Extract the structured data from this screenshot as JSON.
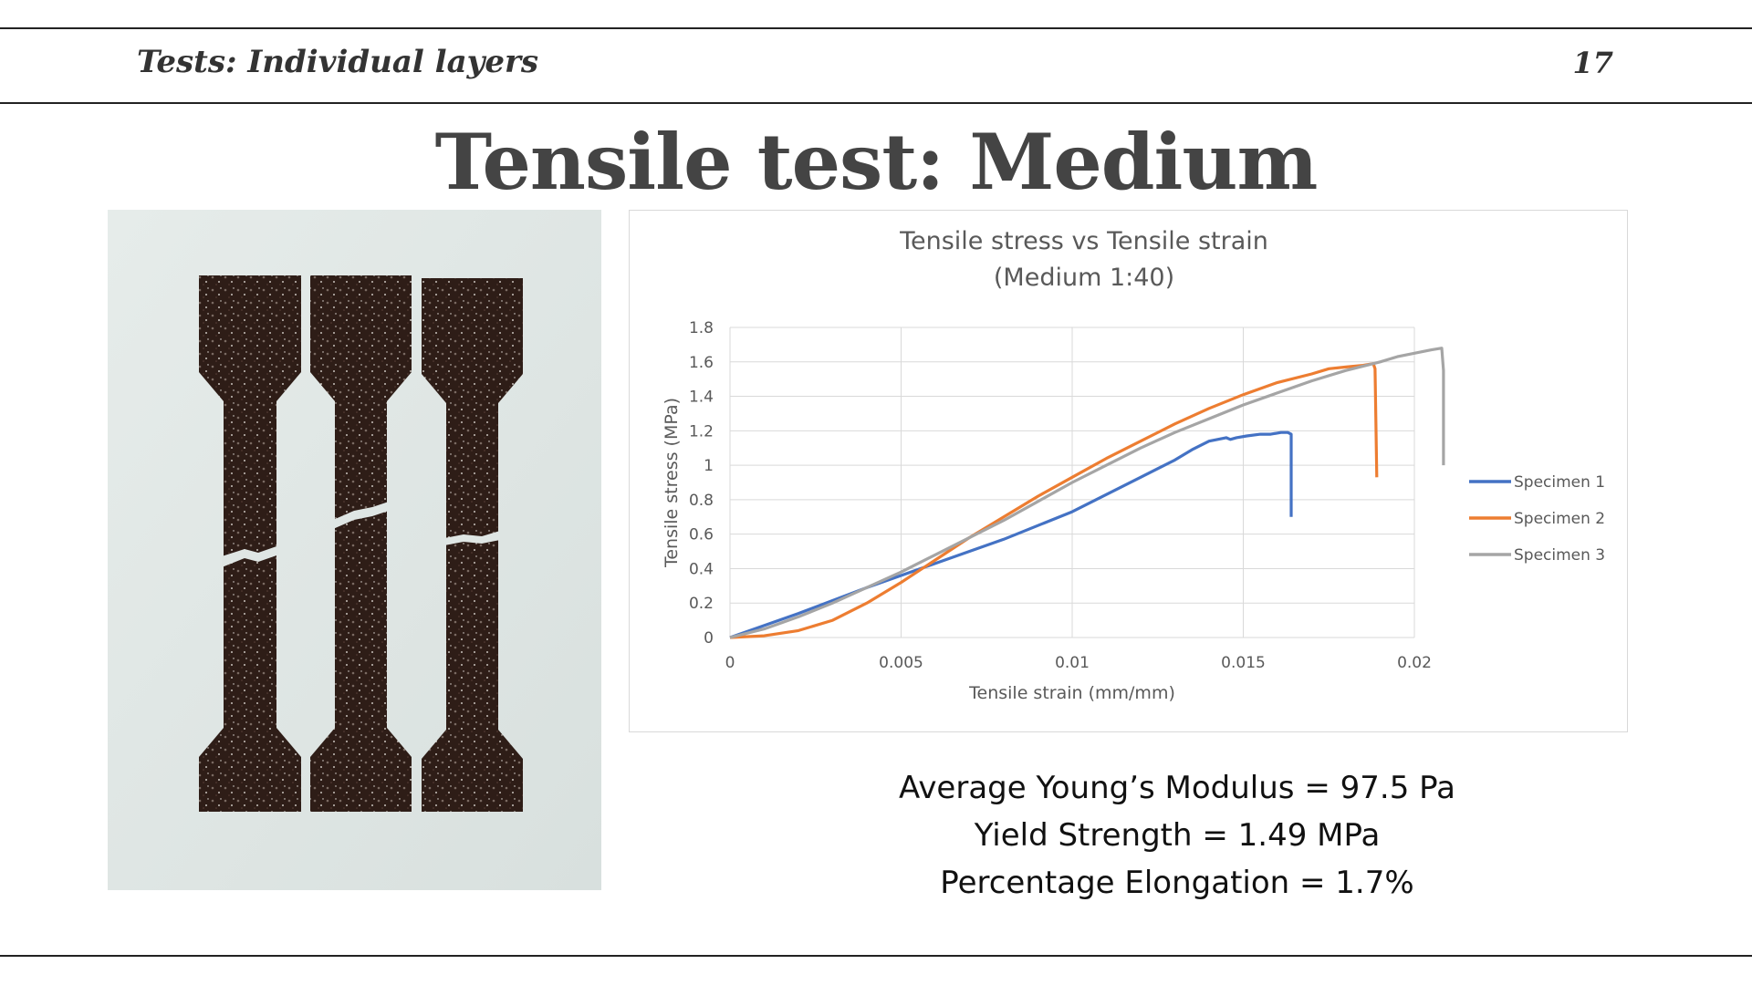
{
  "header": {
    "title": "Tests: Individual layers",
    "page_number": "17"
  },
  "slide": {
    "title": "Tensile test: Medium"
  },
  "photo": {
    "description_icon": "tensile-specimens-photo-icon"
  },
  "stats": {
    "modulus": "Average Young’s Modulus = 97.5 Pa",
    "yield": "Yield Strength = 1.49 MPa",
    "elongation": "Percentage Elongation = 1.7%"
  },
  "chart_data": {
    "type": "line",
    "title": "Tensile stress vs Tensile strain",
    "subtitle": "(Medium 1:40)",
    "xlabel": "Tensile strain (mm/mm)",
    "ylabel": "Tensile stress (MPa)",
    "xlim": [
      0,
      0.02
    ],
    "ylim": [
      0,
      1.8
    ],
    "xticks": [
      0,
      0.005,
      0.01,
      0.015,
      0.02
    ],
    "xtick_labels": [
      "0",
      "0.005",
      "0.01",
      "0.015",
      "0.02"
    ],
    "yticks": [
      0,
      0.2,
      0.4,
      0.6,
      0.8,
      1,
      1.2,
      1.4,
      1.6,
      1.8
    ],
    "ytick_labels": [
      "0",
      "0.2",
      "0.4",
      "0.6",
      "0.8",
      "1",
      "1.2",
      "1.4",
      "1.6",
      "1.8"
    ],
    "grid": true,
    "legend_position": "right",
    "series": [
      {
        "name": "Specimen 1",
        "color": "#4472C4",
        "points": [
          [
            0,
            0
          ],
          [
            0.002,
            0.14
          ],
          [
            0.004,
            0.29
          ],
          [
            0.006,
            0.43
          ],
          [
            0.008,
            0.57
          ],
          [
            0.01,
            0.73
          ],
          [
            0.011,
            0.83
          ],
          [
            0.012,
            0.93
          ],
          [
            0.013,
            1.03
          ],
          [
            0.0135,
            1.09
          ],
          [
            0.014,
            1.14
          ],
          [
            0.0145,
            1.16
          ],
          [
            0.01462,
            1.15
          ],
          [
            0.0148,
            1.16
          ],
          [
            0.0151,
            1.17
          ],
          [
            0.0155,
            1.18
          ],
          [
            0.0158,
            1.18
          ],
          [
            0.0161,
            1.19
          ],
          [
            0.0163,
            1.19
          ],
          [
            0.0164,
            1.18
          ],
          [
            0.0164,
            0.7
          ]
        ]
      },
      {
        "name": "Specimen 2",
        "color": "#ED7D31",
        "points": [
          [
            0,
            0
          ],
          [
            0.001,
            0.01
          ],
          [
            0.002,
            0.04
          ],
          [
            0.003,
            0.1
          ],
          [
            0.004,
            0.2
          ],
          [
            0.005,
            0.32
          ],
          [
            0.006,
            0.45
          ],
          [
            0.007,
            0.58
          ],
          [
            0.008,
            0.7
          ],
          [
            0.009,
            0.82
          ],
          [
            0.01,
            0.93
          ],
          [
            0.011,
            1.04
          ],
          [
            0.012,
            1.14
          ],
          [
            0.013,
            1.24
          ],
          [
            0.014,
            1.33
          ],
          [
            0.015,
            1.41
          ],
          [
            0.016,
            1.48
          ],
          [
            0.017,
            1.53
          ],
          [
            0.0175,
            1.56
          ],
          [
            0.018,
            1.57
          ],
          [
            0.0185,
            1.58
          ],
          [
            0.0188,
            1.59
          ],
          [
            0.01885,
            1.56
          ],
          [
            0.0189,
            0.93
          ]
        ]
      },
      {
        "name": "Specimen 3",
        "color": "#A5A5A5",
        "points": [
          [
            0,
            0
          ],
          [
            0.001,
            0.05
          ],
          [
            0.002,
            0.12
          ],
          [
            0.003,
            0.2
          ],
          [
            0.004,
            0.29
          ],
          [
            0.005,
            0.38
          ],
          [
            0.006,
            0.48
          ],
          [
            0.007,
            0.58
          ],
          [
            0.008,
            0.68
          ],
          [
            0.009,
            0.79
          ],
          [
            0.01,
            0.9
          ],
          [
            0.011,
            1.0
          ],
          [
            0.012,
            1.1
          ],
          [
            0.013,
            1.19
          ],
          [
            0.014,
            1.27
          ],
          [
            0.015,
            1.35
          ],
          [
            0.016,
            1.42
          ],
          [
            0.017,
            1.49
          ],
          [
            0.018,
            1.55
          ],
          [
            0.019,
            1.6
          ],
          [
            0.0195,
            1.63
          ],
          [
            0.02,
            1.65
          ],
          [
            0.0205,
            1.67
          ],
          [
            0.0208,
            1.68
          ],
          [
            0.02085,
            1.55
          ],
          [
            0.02085,
            1.0
          ]
        ]
      }
    ]
  }
}
